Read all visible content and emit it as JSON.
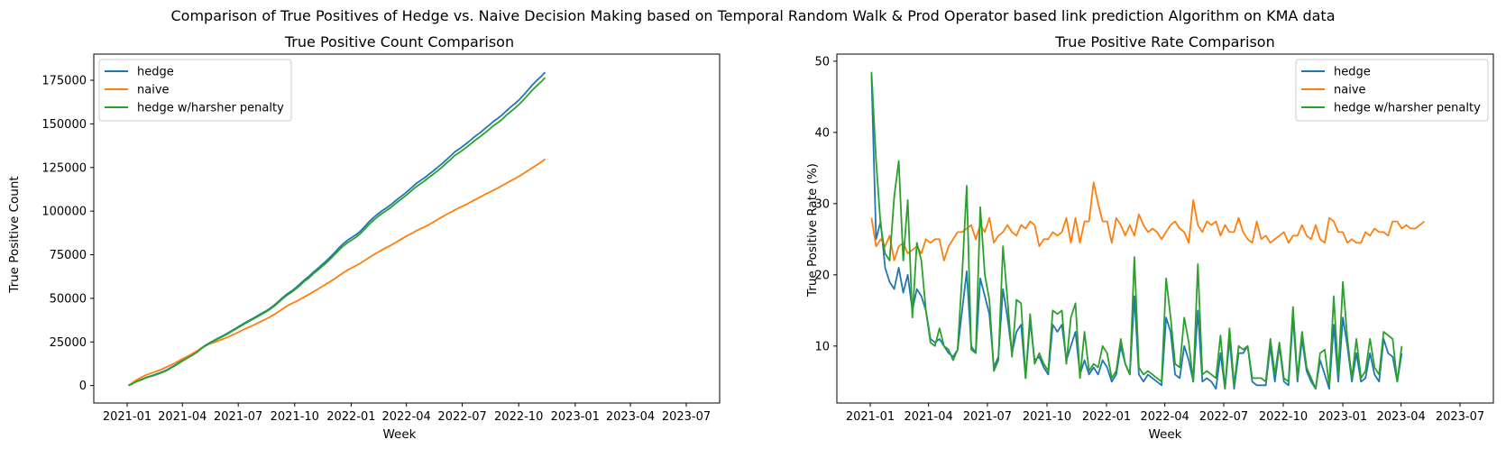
{
  "figure": {
    "suptitle": "Comparison of True Positives of Hedge vs. Naive Decision Making based on Temporal Random Walk & Prod Operator based link prediction Algorithm on KMA data"
  },
  "colors": {
    "hedge": "#1f77b4",
    "naive": "#ff7f0e",
    "harsh": "#2ca02c"
  },
  "chart_data": [
    {
      "type": "line",
      "title": "True Positive Count Comparison",
      "xlabel": "Week",
      "ylabel": "True Positive Count",
      "x_ticks": [
        "2021-01",
        "2021-04",
        "2021-07",
        "2021-10",
        "2022-01",
        "2022-04",
        "2022-07",
        "2022-10",
        "2023-01",
        "2023-04",
        "2023-07"
      ],
      "y_ticks": [
        0,
        25000,
        50000,
        75000,
        100000,
        125000,
        150000,
        175000
      ],
      "ylim": [
        -10000,
        190000
      ],
      "x_start": "2021-01-03",
      "x_step": 7,
      "legend_loc": "upper left",
      "grid": false,
      "series": [
        {
          "name": "hedge",
          "color": "#1f77b4",
          "values": [
            0,
            1150,
            2500,
            3500,
            4500,
            5350,
            6100,
            7000,
            8000,
            9000,
            10500,
            11900,
            13500,
            15000,
            16450,
            17900,
            19500,
            21500,
            23200,
            24600,
            25950,
            27300,
            28550,
            29900,
            31400,
            32800,
            34300,
            35800,
            37200,
            38500,
            39900,
            41300,
            42700,
            44300,
            46200,
            48400,
            50600,
            52600,
            54200,
            56200,
            58300,
            60600,
            62500,
            64900,
            66900,
            69100,
            71300,
            73700,
            76200,
            78900,
            81300,
            83300,
            84900,
            86500,
            88500,
            91100,
            93800,
            96100,
            98200,
            100100,
            101700,
            103500,
            105500,
            107500,
            109400,
            111500,
            113600,
            115800,
            117500,
            119200,
            121200,
            123100,
            125100,
            127100,
            129400,
            131600,
            134000,
            135600,
            137500,
            139300,
            141400,
            143400,
            145200,
            147300,
            149300,
            151500,
            153200,
            155100,
            157500,
            159700,
            161700,
            163900,
            166500,
            169400,
            172200,
            174700,
            177000,
            179600
          ]
        },
        {
          "name": "naive",
          "color": "#ff7f0e",
          "values": [
            0,
            1750,
            3400,
            4700,
            5900,
            6900,
            7700,
            8600,
            9600,
            10800,
            11900,
            13100,
            14500,
            15800,
            17100,
            18500,
            19900,
            21400,
            22800,
            24000,
            24800,
            25700,
            26700,
            27600,
            28700,
            29900,
            31100,
            32300,
            33400,
            34500,
            35700,
            36900,
            38100,
            39400,
            40800,
            42400,
            44100,
            45700,
            47000,
            48200,
            49500,
            50900,
            52200,
            53700,
            55100,
            56600,
            58100,
            59600,
            61200,
            62900,
            64600,
            66200,
            67500,
            68800,
            70100,
            71700,
            73300,
            74800,
            76300,
            77700,
            79000,
            80300,
            81700,
            83200,
            84700,
            86000,
            87300,
            88700,
            89900,
            91000,
            92300,
            93700,
            95200,
            96600,
            98000,
            99300,
            100700,
            101900,
            103100,
            104300,
            105600,
            106900,
            108200,
            109600,
            110800,
            112000,
            113300,
            114600,
            116000,
            117400,
            118700,
            120100,
            121600,
            123200,
            124800,
            126400,
            128000,
            129800
          ]
        },
        {
          "name": "hedge w/harsher penalty",
          "color": "#2ca02c",
          "values": [
            0,
            1100,
            2400,
            3300,
            4300,
            5100,
            5800,
            6700,
            7700,
            8700,
            10200,
            11600,
            13200,
            14700,
            16200,
            17600,
            19200,
            21200,
            22900,
            24300,
            25650,
            27000,
            28200,
            29500,
            31000,
            32400,
            33900,
            35300,
            36700,
            38000,
            39400,
            40800,
            42200,
            43800,
            45600,
            47800,
            50000,
            51900,
            53500,
            55500,
            57500,
            59800,
            61600,
            64000,
            66000,
            68100,
            70200,
            72600,
            75000,
            77600,
            80000,
            81900,
            83500,
            85100,
            87100,
            89700,
            92300,
            94600,
            96700,
            98600,
            100200,
            101900,
            103900,
            105900,
            107800,
            109800,
            111900,
            114000,
            115700,
            117400,
            119400,
            121200,
            123200,
            125200,
            127400,
            129600,
            131900,
            133500,
            135400,
            137200,
            139200,
            141100,
            142900,
            144900,
            146900,
            149000,
            150700,
            152600,
            155000,
            157100,
            159100,
            161300,
            163800,
            166600,
            169300,
            171700,
            174000,
            176500
          ]
        }
      ]
    },
    {
      "type": "line",
      "title": "True Positive Rate Comparison",
      "xlabel": "Week",
      "ylabel": "True Positive Rate (%)",
      "x_ticks": [
        "2021-01",
        "2021-04",
        "2021-07",
        "2021-10",
        "2022-01",
        "2022-04",
        "2022-07",
        "2022-10",
        "2023-01",
        "2023-04",
        "2023-07"
      ],
      "y_ticks": [
        10,
        20,
        30,
        40,
        50
      ],
      "ylim": [
        2,
        51
      ],
      "x_start": "2021-01-03",
      "x_step": 7,
      "legend_loc": "upper right",
      "grid": false,
      "series": [
        {
          "name": "hedge",
          "color": "#1f77b4",
          "values": [
            48,
            25,
            27.5,
            21,
            19,
            18,
            21,
            17.5,
            20,
            15,
            18,
            17,
            15,
            11,
            10.5,
            11,
            10,
            9,
            8.5,
            9.5,
            15,
            20.5,
            10,
            9,
            19.5,
            17,
            14.5,
            7,
            8.5,
            18,
            14,
            9,
            12,
            13,
            5.5,
            13.5,
            8,
            8.5,
            7,
            6,
            13,
            12,
            13,
            8,
            10,
            12,
            6,
            8,
            6,
            7,
            6,
            8,
            7,
            5,
            6,
            10,
            7.5,
            6,
            17,
            6,
            5,
            6,
            5.5,
            5,
            4.5,
            14,
            12,
            6,
            5.5,
            10,
            8,
            5,
            15,
            5,
            5.5,
            5,
            4,
            9,
            4,
            11,
            4,
            9,
            9,
            10,
            5,
            4.5,
            4.5,
            4.5,
            10,
            5,
            10,
            5,
            4.5,
            14,
            5,
            11,
            6.5,
            5,
            4,
            8,
            6,
            4,
            13,
            5,
            14,
            10,
            5,
            9,
            5,
            5.5,
            9,
            6,
            5,
            11,
            9,
            8.5,
            5,
            9
          ]
        },
        {
          "name": "naive",
          "color": "#ff7f0e",
          "values": [
            28,
            24,
            25,
            24,
            25.5,
            22,
            24,
            24.5,
            23,
            23.5,
            24,
            23,
            25,
            24.5,
            25,
            25,
            22,
            24,
            25,
            26,
            26,
            26.5,
            27,
            25,
            27,
            26,
            28,
            24.5,
            25.5,
            26,
            27,
            26,
            25.5,
            27,
            26.5,
            27.5,
            27,
            24,
            25,
            25,
            26,
            25.5,
            26,
            28,
            24.5,
            28,
            24.5,
            27.5,
            27.5,
            33,
            30,
            27.5,
            27.5,
            24.5,
            28,
            27,
            25.5,
            27,
            25.5,
            28.5,
            27,
            26,
            26.5,
            26,
            25,
            26,
            27,
            27.5,
            26.5,
            26,
            24.5,
            30.5,
            27,
            26,
            27.5,
            27,
            27.5,
            25.5,
            27,
            26,
            26,
            28,
            26,
            25,
            24.5,
            27.5,
            25,
            25.5,
            24.5,
            25,
            25.5,
            26,
            24.5,
            25.5,
            25.5,
            27,
            25.5,
            25,
            27,
            25,
            24.5,
            28,
            27.5,
            26,
            26,
            24.5,
            25,
            24.5,
            24.5,
            26,
            25.5,
            26.5,
            26,
            26,
            25.5,
            27.5,
            27.5,
            26.5,
            27,
            26.5,
            26.5,
            27,
            27.5
          ]
        },
        {
          "name": "hedge w/harsher penalty",
          "color": "#2ca02c",
          "values": [
            48.5,
            36,
            27,
            23,
            22,
            31,
            36,
            22,
            30.5,
            14,
            24.5,
            22,
            15,
            10.5,
            10,
            12.5,
            10,
            9.5,
            8,
            9.5,
            20,
            32.5,
            9.5,
            9,
            29.5,
            20,
            16.5,
            6.5,
            8,
            24,
            16.5,
            8.5,
            16.5,
            16,
            5.5,
            14.5,
            7.5,
            9,
            7.5,
            6.5,
            15,
            14.5,
            15,
            7.5,
            14,
            16,
            5.5,
            12,
            6.5,
            7.5,
            7,
            10,
            9,
            5.5,
            6.5,
            11,
            7.5,
            6,
            22.5,
            7,
            6,
            6.5,
            6,
            5.5,
            5,
            19.5,
            14,
            7.5,
            7,
            14,
            10.5,
            5,
            21.5,
            6,
            6.5,
            6,
            5.5,
            11.5,
            4,
            12.5,
            4.5,
            10,
            9.5,
            10,
            5.5,
            5.5,
            5.5,
            5,
            11,
            6,
            10.5,
            5.5,
            5,
            15.5,
            5.5,
            12,
            7,
            5.5,
            4,
            9,
            9.5,
            4.5,
            17,
            6,
            19,
            11,
            5.5,
            11,
            5.5,
            6.5,
            11,
            7,
            6,
            12,
            11.5,
            11,
            5,
            10
          ]
        }
      ]
    }
  ]
}
